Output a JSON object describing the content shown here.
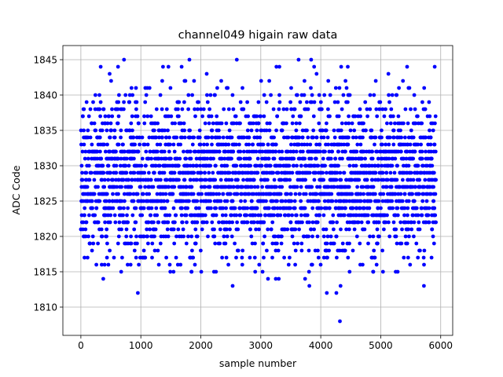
{
  "chart_data": {
    "type": "scatter",
    "title": "channel049 higain raw data",
    "xlabel": "sample number",
    "ylabel": "ADC Code",
    "xlim": [
      -300,
      6200
    ],
    "ylim": [
      1806,
      1847
    ],
    "xticks": [
      0,
      1000,
      2000,
      3000,
      4000,
      5000,
      6000
    ],
    "yticks": [
      1810,
      1815,
      1820,
      1825,
      1830,
      1835,
      1840,
      1845
    ],
    "grid": true,
    "marker_color": "#0000ff",
    "n_samples": 5920,
    "core_range": [
      1820,
      1837
    ],
    "extreme_points": [
      {
        "x": 950,
        "y": 1812
      },
      {
        "x": 4100,
        "y": 1812
      },
      {
        "x": 4260,
        "y": 1812
      },
      {
        "x": 4320,
        "y": 1808
      },
      {
        "x": 4330,
        "y": 1813
      },
      {
        "x": 5720,
        "y": 1813
      },
      {
        "x": 2530,
        "y": 1813
      },
      {
        "x": 3810,
        "y": 1813
      },
      {
        "x": 3120,
        "y": 1814
      },
      {
        "x": 3250,
        "y": 1814
      },
      {
        "x": 3300,
        "y": 1814
      },
      {
        "x": 720,
        "y": 1845
      },
      {
        "x": 1810,
        "y": 1845
      },
      {
        "x": 2600,
        "y": 1845
      },
      {
        "x": 3630,
        "y": 1845
      },
      {
        "x": 3840,
        "y": 1845
      },
      {
        "x": 330,
        "y": 1844
      },
      {
        "x": 620,
        "y": 1844
      },
      {
        "x": 1370,
        "y": 1844
      },
      {
        "x": 1460,
        "y": 1844
      },
      {
        "x": 1680,
        "y": 1844
      },
      {
        "x": 3260,
        "y": 1844
      },
      {
        "x": 3310,
        "y": 1844
      },
      {
        "x": 3890,
        "y": 1844
      },
      {
        "x": 4340,
        "y": 1844
      },
      {
        "x": 4450,
        "y": 1844
      },
      {
        "x": 5440,
        "y": 1844
      },
      {
        "x": 5900,
        "y": 1844
      },
      {
        "x": 480,
        "y": 1843
      },
      {
        "x": 3930,
        "y": 1843
      }
    ]
  }
}
